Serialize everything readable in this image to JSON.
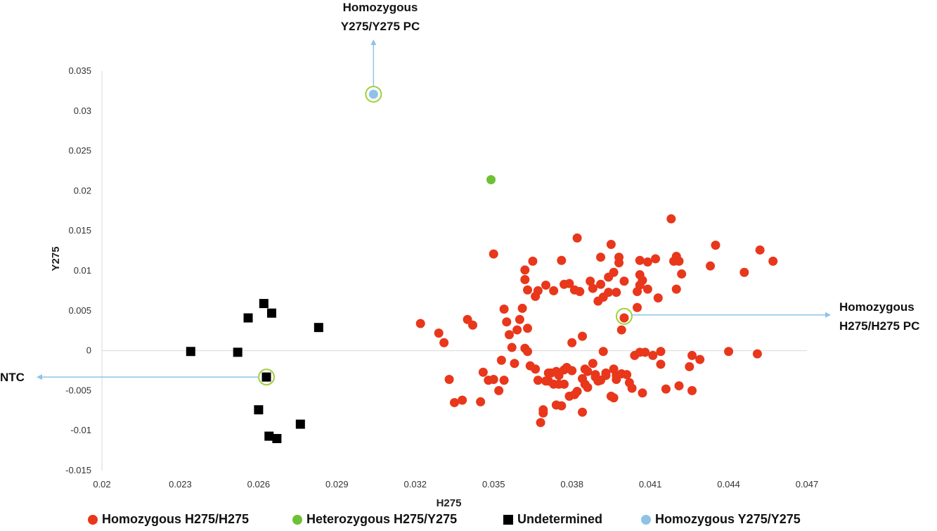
{
  "chart_data": {
    "type": "scatter",
    "xlabel": "H275",
    "ylabel": "Y275",
    "xlim": [
      0.02,
      0.047
    ],
    "ylim": [
      -0.015,
      0.035
    ],
    "x_ticks": [
      "0.02",
      "0.023",
      "0.026",
      "0.029",
      "0.032",
      "0.035",
      "0.038",
      "0.041",
      "0.044",
      "0.047"
    ],
    "y_ticks": [
      "-0.015",
      "-0.01",
      "-0.005",
      "0",
      "0.005",
      "0.01",
      "0.015",
      "0.02",
      "0.025",
      "0.03",
      "0.035"
    ],
    "grid": false,
    "legend_position": "bottom",
    "series": [
      {
        "name": "Homozygous H275/H275",
        "marker": "circle",
        "color": "#e8371b",
        "points": [
          [
            0.0322,
            0.0034
          ],
          [
            0.0329,
            0.0022
          ],
          [
            0.0331,
            0.001
          ],
          [
            0.0333,
            -0.0036
          ],
          [
            0.0335,
            -0.0065
          ],
          [
            0.0338,
            -0.0062
          ],
          [
            0.034,
            0.0039
          ],
          [
            0.0342,
            0.0032
          ],
          [
            0.0345,
            -0.0064
          ],
          [
            0.0346,
            -0.0027
          ],
          [
            0.0348,
            -0.0037
          ],
          [
            0.035,
            0.0121
          ],
          [
            0.035,
            -0.0036
          ],
          [
            0.0352,
            -0.005
          ],
          [
            0.0353,
            -0.0012
          ],
          [
            0.0354,
            0.0052
          ],
          [
            0.0354,
            -0.0037
          ],
          [
            0.0355,
            0.0036
          ],
          [
            0.0356,
            0.002
          ],
          [
            0.0357,
            0.0004
          ],
          [
            0.0358,
            -0.0016
          ],
          [
            0.0359,
            0.0026
          ],
          [
            0.036,
            0.0039
          ],
          [
            0.0361,
            0.0053
          ],
          [
            0.0362,
            0.0101
          ],
          [
            0.0362,
            0.0003
          ],
          [
            0.0362,
            0.0089
          ],
          [
            0.0363,
            -0.0001
          ],
          [
            0.0363,
            0.0028
          ],
          [
            0.0363,
            0.0076
          ],
          [
            0.0364,
            -0.0019
          ],
          [
            0.0365,
            0.0112
          ],
          [
            0.0366,
            -0.0023
          ],
          [
            0.0366,
            0.0068
          ],
          [
            0.0367,
            0.0075
          ],
          [
            0.0367,
            -0.0037
          ],
          [
            0.0368,
            -0.009
          ],
          [
            0.0369,
            -0.0078
          ],
          [
            0.0369,
            -0.0074
          ],
          [
            0.037,
            0.0082
          ],
          [
            0.037,
            -0.0038
          ],
          [
            0.0371,
            -0.0028
          ],
          [
            0.0371,
            -0.0038
          ],
          [
            0.0372,
            -0.0028
          ],
          [
            0.0373,
            0.0075
          ],
          [
            0.0373,
            -0.0042
          ],
          [
            0.0374,
            -0.0068
          ],
          [
            0.0374,
            -0.0026
          ],
          [
            0.0375,
            -0.0042
          ],
          [
            0.0375,
            -0.0031
          ],
          [
            0.0376,
            0.0113
          ],
          [
            0.0376,
            -0.0069
          ],
          [
            0.0377,
            -0.0024
          ],
          [
            0.0377,
            -0.0042
          ],
          [
            0.0377,
            0.0083
          ],
          [
            0.0378,
            -0.0021
          ],
          [
            0.0379,
            0.0084
          ],
          [
            0.0379,
            -0.0057
          ],
          [
            0.038,
            -0.0025
          ],
          [
            0.038,
            0.001
          ],
          [
            0.0381,
            0.0076
          ],
          [
            0.0381,
            -0.0055
          ],
          [
            0.0382,
            -0.0051
          ],
          [
            0.0382,
            0.0141
          ],
          [
            0.0383,
            0.0074
          ],
          [
            0.0384,
            0.0018
          ],
          [
            0.0384,
            -0.0077
          ],
          [
            0.0384,
            -0.0035
          ],
          [
            0.0385,
            -0.0042
          ],
          [
            0.0385,
            -0.0023
          ],
          [
            0.0386,
            -0.0046
          ],
          [
            0.0386,
            -0.0026
          ],
          [
            0.0387,
            0.0087
          ],
          [
            0.0388,
            -0.0016
          ],
          [
            0.0388,
            0.0078
          ],
          [
            0.0389,
            -0.0033
          ],
          [
            0.0389,
            -0.003
          ],
          [
            0.039,
            0.0062
          ],
          [
            0.039,
            -0.0038
          ],
          [
            0.0391,
            0.0083
          ],
          [
            0.0391,
            0.0117
          ],
          [
            0.0391,
            -0.0037
          ],
          [
            0.0392,
            0.0067
          ],
          [
            0.0392,
            -0.0001
          ],
          [
            0.0393,
            -0.0031
          ],
          [
            0.0393,
            -0.0028
          ],
          [
            0.0394,
            0.0092
          ],
          [
            0.0394,
            0.0073
          ],
          [
            0.0395,
            0.0133
          ],
          [
            0.0395,
            -0.0057
          ],
          [
            0.0396,
            -0.0059
          ],
          [
            0.0396,
            -0.0023
          ],
          [
            0.0396,
            0.0098
          ],
          [
            0.0397,
            -0.0036
          ],
          [
            0.0397,
            0.0073
          ],
          [
            0.0397,
            -0.0031
          ],
          [
            0.0398,
            0.0117
          ],
          [
            0.0398,
            0.011
          ],
          [
            0.0399,
            -0.0029
          ],
          [
            0.0399,
            0.0026
          ],
          [
            0.04,
            0.0087
          ],
          [
            0.04,
            0.0041
          ],
          [
            0.0401,
            -0.003
          ],
          [
            0.0402,
            -0.004
          ],
          [
            0.0403,
            -0.0047
          ],
          [
            0.0404,
            -0.0006
          ],
          [
            0.0405,
            0.0074
          ],
          [
            0.0405,
            0.0054
          ],
          [
            0.0406,
            0.0082
          ],
          [
            0.0406,
            -0.0002
          ],
          [
            0.0406,
            0.0095
          ],
          [
            0.0406,
            0.0113
          ],
          [
            0.0407,
            0.0088
          ],
          [
            0.0407,
            -0.0053
          ],
          [
            0.0408,
            -0.0002
          ],
          [
            0.0409,
            0.0077
          ],
          [
            0.0409,
            0.0111
          ],
          [
            0.0411,
            -0.0006
          ],
          [
            0.0412,
            0.0115
          ],
          [
            0.0413,
            0.0066
          ],
          [
            0.0414,
            -0.0001
          ],
          [
            0.0414,
            -0.0017
          ],
          [
            0.0416,
            -0.0048
          ],
          [
            0.0418,
            0.0165
          ],
          [
            0.0419,
            0.0112
          ],
          [
            0.042,
            0.0118
          ],
          [
            0.042,
            0.0077
          ],
          [
            0.0421,
            0.0112
          ],
          [
            0.0421,
            -0.0044
          ],
          [
            0.0422,
            0.0096
          ],
          [
            0.0425,
            -0.002
          ],
          [
            0.0426,
            -0.0006
          ],
          [
            0.0426,
            -0.005
          ],
          [
            0.0429,
            -0.0011
          ],
          [
            0.0433,
            0.0106
          ],
          [
            0.0435,
            0.0132
          ],
          [
            0.044,
            -0.0001
          ],
          [
            0.0446,
            0.0098
          ],
          [
            0.0451,
            -0.0004
          ],
          [
            0.0452,
            0.0126
          ],
          [
            0.0457,
            0.0112
          ]
        ]
      },
      {
        "name": "Heterozygous H275/Y275",
        "marker": "circle",
        "color": "#6cc233",
        "points": [
          [
            0.0349,
            0.0214
          ]
        ]
      },
      {
        "name": "Undetermined",
        "marker": "square",
        "color": "#000000",
        "points": [
          [
            0.0234,
            -0.0001
          ],
          [
            0.0252,
            -0.0002
          ],
          [
            0.0256,
            0.0041
          ],
          [
            0.026,
            -0.0074
          ],
          [
            0.0262,
            0.0059
          ],
          [
            0.0263,
            -0.0033
          ],
          [
            0.0264,
            -0.0107
          ],
          [
            0.0265,
            0.0047
          ],
          [
            0.0267,
            -0.011
          ],
          [
            0.0276,
            -0.0092
          ],
          [
            0.0283,
            0.0029
          ]
        ]
      },
      {
        "name": "Homozygous Y275/Y275",
        "marker": "circle",
        "color": "#8fc3e6",
        "points": [
          [
            0.0304,
            0.0321
          ]
        ]
      }
    ],
    "annotations": [
      {
        "lines": [
          "Homozygous",
          "Y275/Y275 PC"
        ],
        "target": [
          0.0304,
          0.0321
        ],
        "arrow": "up"
      },
      {
        "lines": [
          "Homozygous",
          "H275/H275 PC"
        ],
        "target": [
          0.04,
          0.0043
        ],
        "arrow": "right"
      },
      {
        "lines": [
          "NTC"
        ],
        "target": [
          0.0263,
          -0.0033
        ],
        "arrow": "left"
      }
    ],
    "highlight_ring_color": "#9fd03a",
    "arrow_color": "#8fc3e6",
    "axis_color": "#d9d9d9"
  }
}
